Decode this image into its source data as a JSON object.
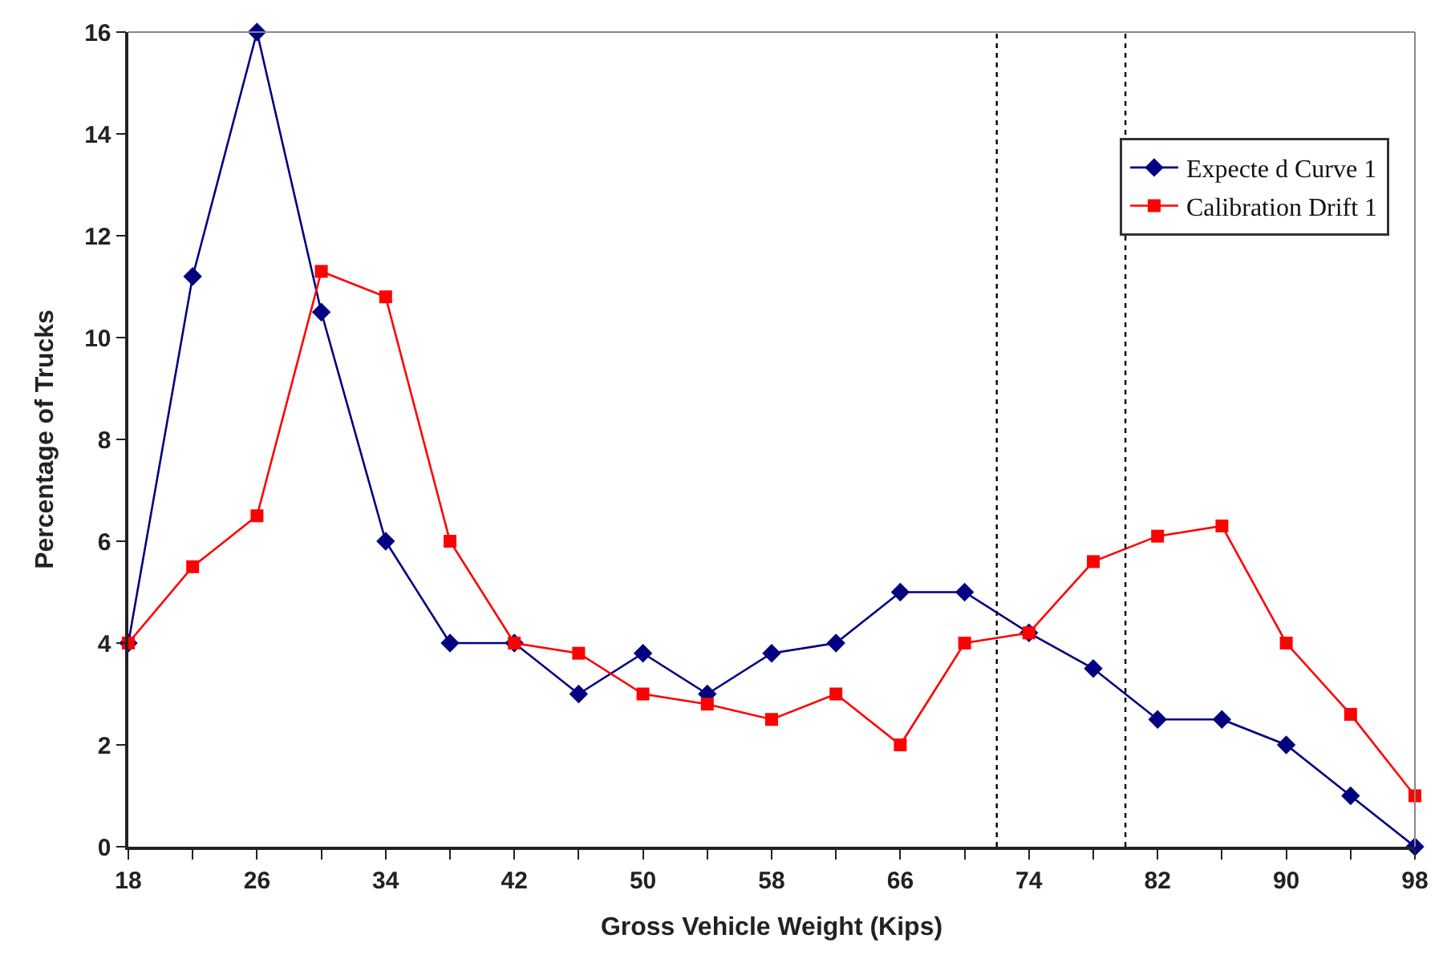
{
  "chart_data": {
    "type": "line",
    "xlabel": "Gross Vehicle Weight (Kips)",
    "ylabel": "Percentage of Trucks",
    "x": [
      18,
      22,
      26,
      30,
      34,
      38,
      42,
      46,
      50,
      54,
      58,
      62,
      66,
      70,
      74,
      78,
      82,
      86,
      90,
      94,
      98
    ],
    "series": [
      {
        "name": "Expecte d Curve 1",
        "color": "#000080",
        "marker": "diamond",
        "values": [
          4,
          11.2,
          16,
          10.5,
          6,
          4,
          4,
          3,
          3.8,
          3,
          3.8,
          4,
          5,
          5,
          4.2,
          3.5,
          2.5,
          2.5,
          2,
          1,
          0
        ]
      },
      {
        "name": "Calibration Drift 1",
        "color": "#ff0000",
        "marker": "square",
        "values": [
          4,
          5.5,
          6.5,
          11.3,
          10.8,
          6,
          4,
          3.8,
          3,
          2.8,
          2.5,
          3,
          2,
          4,
          4.2,
          5.6,
          6.1,
          6.3,
          4,
          2.6,
          1
        ]
      }
    ],
    "xlim": [
      18,
      98
    ],
    "xticks": [
      18,
      {
        "value": 22,
        "label": null
      },
      26,
      {
        "value": 30,
        "label": null
      },
      34,
      {
        "value": 38,
        "label": null
      },
      42,
      {
        "value": 46,
        "label": null
      },
      50,
      {
        "value": 54,
        "label": null
      },
      58,
      {
        "value": 62,
        "label": null
      },
      66,
      {
        "value": 70,
        "label": null
      },
      74,
      {
        "value": 78,
        "label": null
      },
      82,
      {
        "value": 86,
        "label": null
      },
      90,
      {
        "value": 94,
        "label": null
      },
      98
    ],
    "ylim": [
      0,
      16
    ],
    "yticks": [
      0,
      2,
      4,
      6,
      8,
      10,
      12,
      14,
      16
    ],
    "ref_lines": [
      {
        "axis": "x",
        "value": 72,
        "color": "#000000",
        "line_style": "dotted"
      },
      {
        "axis": "x",
        "value": 80,
        "color": "#000000",
        "line_style": "dotted"
      }
    ],
    "legend": "top right",
    "line_style": "solid"
  }
}
